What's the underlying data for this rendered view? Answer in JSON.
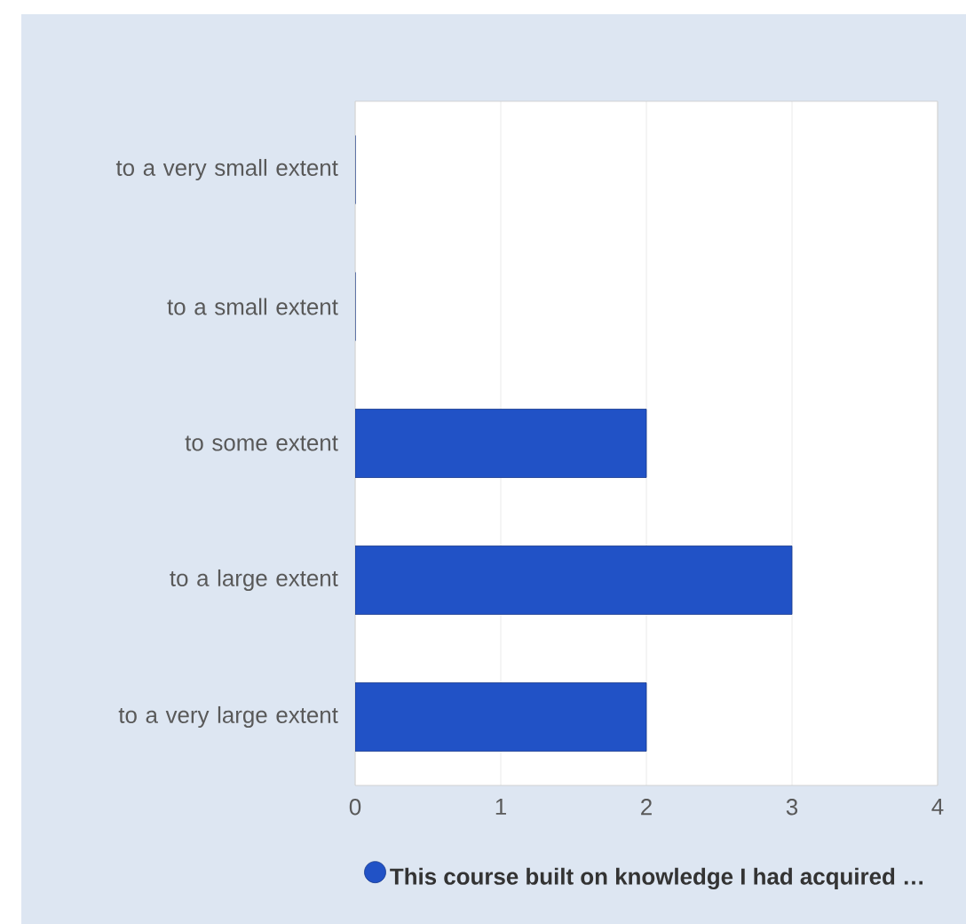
{
  "chart_data": {
    "type": "bar",
    "orientation": "horizontal",
    "categories": [
      "to a very small extent",
      "to a small extent",
      "to some extent",
      "to a large extent",
      "to a very large extent"
    ],
    "series": [
      {
        "name": "This course built on knowledge I had acquired …",
        "color": "#2152c6",
        "values": [
          0,
          0,
          2,
          3,
          2
        ]
      }
    ],
    "xlim": [
      0,
      4
    ],
    "xticks": [
      0,
      1,
      2,
      3,
      4
    ],
    "grid": "x",
    "legend": "bottom"
  }
}
